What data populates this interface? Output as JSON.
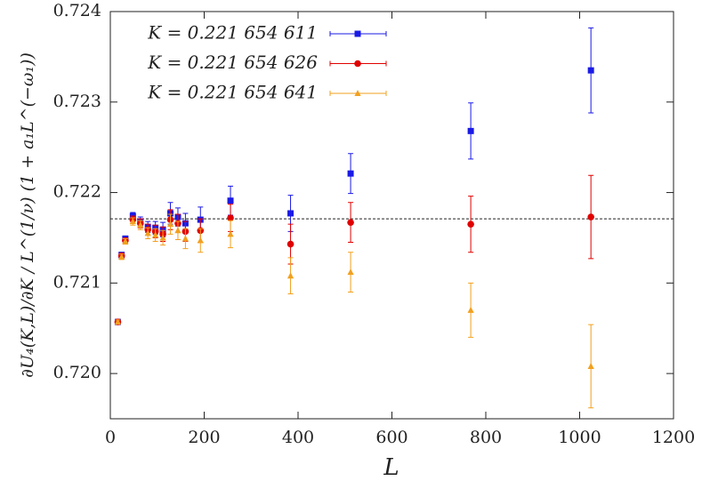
{
  "chart_data": {
    "type": "scatter",
    "x_label": "L",
    "y_label": "∂U₄(K,L)/∂K / L^(1/ν) (1 + a₁L^(−ω₁))",
    "x": [
      16,
      24,
      32,
      48,
      64,
      80,
      96,
      112,
      128,
      144,
      160,
      192,
      256,
      384,
      512,
      768,
      1024
    ],
    "series": [
      {
        "name": "K = 0.221 654 611",
        "color": "#1a1ae6",
        "marker": "square",
        "values": [
          0.72057,
          0.72131,
          0.72149,
          0.72174,
          0.72168,
          0.72162,
          0.72161,
          0.72159,
          0.72177,
          0.72173,
          0.72166,
          0.7217,
          0.72191,
          0.72177,
          0.72221,
          0.72268,
          0.72335
        ],
        "errors": [
          2e-05,
          3e-05,
          3e-05,
          4e-05,
          5e-05,
          6e-05,
          7e-05,
          8e-05,
          0.00012,
          0.0001,
          0.00011,
          0.00014,
          0.00016,
          0.0002,
          0.00022,
          0.00031,
          0.00047
        ]
      },
      {
        "name": "K = 0.221 654 626",
        "color": "#e00000",
        "marker": "circle",
        "values": [
          0.72057,
          0.7213,
          0.72147,
          0.7217,
          0.72166,
          0.72159,
          0.72157,
          0.72154,
          0.7217,
          0.72166,
          0.72157,
          0.72158,
          0.72172,
          0.72143,
          0.72167,
          0.72165,
          0.72173
        ],
        "errors": [
          2e-05,
          3e-05,
          3e-05,
          4e-05,
          5e-05,
          6e-05,
          7e-05,
          8e-05,
          0.00011,
          0.0001,
          0.00011,
          0.00013,
          0.00015,
          0.00022,
          0.00022,
          0.00031,
          0.00046
        ]
      },
      {
        "name": "K = 0.221 654 641",
        "color": "#f2a01e",
        "marker": "triangle",
        "values": [
          0.72057,
          0.72129,
          0.72146,
          0.72168,
          0.72164,
          0.72155,
          0.72153,
          0.7215,
          0.72165,
          0.72158,
          0.72149,
          0.72147,
          0.72154,
          0.72108,
          0.72112,
          0.7207,
          0.72008
        ],
        "errors": [
          2e-05,
          3e-05,
          3e-05,
          4e-05,
          5e-05,
          6e-05,
          7e-05,
          8e-05,
          0.00011,
          0.0001,
          0.00011,
          0.00013,
          0.00015,
          0.0002,
          0.00022,
          0.0003,
          0.00046
        ]
      }
    ],
    "reference_line": 0.72171,
    "xlim": [
      0,
      1200
    ],
    "xticks": [
      0,
      200,
      400,
      600,
      800,
      1000,
      1200
    ],
    "ylim": [
      0.7195,
      0.724
    ],
    "yticks": [
      {
        "value": 0.72,
        "label": "0.720"
      },
      0.721,
      0.722,
      0.723,
      {
        "value": 0.724,
        "label": "0.724"
      }
    ],
    "legend": "upper left"
  }
}
